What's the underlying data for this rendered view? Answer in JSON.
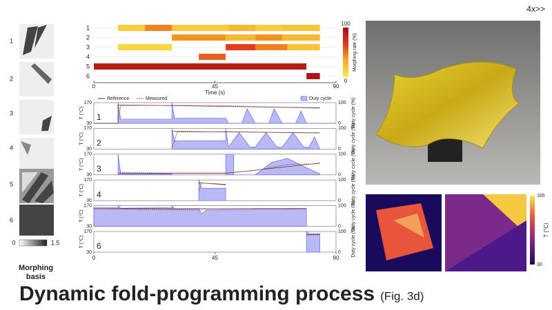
{
  "speed": "4x>>",
  "title": "Dynamic fold-programming process",
  "subtitle": "(Fig. 3d)",
  "basis": {
    "labels": [
      "1",
      "2",
      "3",
      "4",
      "5",
      "6"
    ],
    "colorbar": {
      "min": 0,
      "max": 1.5
    },
    "caption": "Morphing basis"
  },
  "timeline": {
    "xlabel": "Time (s)",
    "xlim": [
      0,
      90
    ],
    "xticks": [
      0,
      45,
      90
    ],
    "rows": [
      {
        "label": "1",
        "segments": [
          [
            9,
            19,
            15
          ],
          [
            19,
            29,
            45
          ],
          [
            29,
            50,
            15
          ],
          [
            50,
            60,
            25
          ],
          [
            60,
            70,
            15
          ],
          [
            70,
            84,
            20
          ]
        ]
      },
      {
        "label": "2",
        "segments": [
          [
            29,
            49,
            40
          ],
          [
            49,
            60,
            25
          ],
          [
            60,
            70,
            40
          ],
          [
            70,
            84,
            25
          ]
        ]
      },
      {
        "label": "3",
        "segments": [
          [
            9,
            29,
            10
          ],
          [
            49,
            60,
            65
          ],
          [
            60,
            72,
            45
          ],
          [
            72,
            84,
            20
          ]
        ]
      },
      {
        "label": "4",
        "segments": [
          [
            39,
            49,
            55
          ]
        ]
      },
      {
        "label": "5",
        "segments": [
          [
            0,
            79,
            90
          ]
        ]
      },
      {
        "label": "6",
        "segments": [
          [
            79,
            84,
            95
          ]
        ]
      }
    ],
    "colorbar": {
      "label": "Morphing rate (%)",
      "lim": [
        0,
        100
      ],
      "ticks": [
        0,
        100
      ]
    }
  },
  "plots": {
    "legend": [
      "Reference",
      "Measured",
      "Duty cycle"
    ],
    "ylabel": "T (°C)",
    "y2label": "Duty cycle (%)",
    "ylim": [
      30,
      170
    ],
    "yticks": [
      30,
      170
    ],
    "y2lim": [
      0,
      100
    ],
    "y2ticks": [
      0,
      100
    ],
    "xlim": [
      0,
      90
    ],
    "xticks": [
      0,
      45,
      90
    ],
    "panels": [
      {
        "label": "1",
        "reference": [
          [
            0,
            30
          ],
          [
            9,
            30
          ],
          [
            9,
            155
          ],
          [
            84,
            135
          ]
        ],
        "measured": [
          [
            9,
            40
          ],
          [
            10,
            150
          ],
          [
            29,
            152
          ],
          [
            50,
            148
          ],
          [
            84,
            132
          ]
        ],
        "duty": [
          [
            0,
            0
          ],
          [
            9,
            0
          ],
          [
            9,
            100
          ],
          [
            10,
            20
          ],
          [
            29,
            20
          ],
          [
            29,
            100
          ],
          [
            30,
            25
          ],
          [
            49,
            25
          ],
          [
            50,
            0
          ],
          [
            55,
            0
          ],
          [
            57,
            70
          ],
          [
            60,
            0
          ],
          [
            65,
            0
          ],
          [
            67,
            70
          ],
          [
            70,
            0
          ],
          [
            75,
            0
          ],
          [
            77,
            60
          ],
          [
            79,
            0
          ],
          [
            90,
            0
          ]
        ]
      },
      {
        "label": "2",
        "reference": [
          [
            29,
            150
          ],
          [
            84,
            140
          ]
        ],
        "measured": [
          [
            29,
            35
          ],
          [
            31,
            145
          ],
          [
            49,
            148
          ],
          [
            84,
            138
          ]
        ],
        "duty": [
          [
            29,
            0
          ],
          [
            29,
            100
          ],
          [
            30,
            40
          ],
          [
            49,
            40
          ],
          [
            49,
            100
          ],
          [
            50,
            10
          ],
          [
            54,
            80
          ],
          [
            58,
            10
          ],
          [
            60,
            10
          ],
          [
            64,
            80
          ],
          [
            68,
            10
          ],
          [
            70,
            10
          ],
          [
            74,
            80
          ],
          [
            78,
            10
          ],
          [
            80,
            10
          ],
          [
            82,
            60
          ],
          [
            84,
            0
          ]
        ]
      },
      {
        "label": "3",
        "reference": [
          [
            9,
            40
          ],
          [
            29,
            40
          ],
          [
            49,
            40
          ],
          [
            84,
            110
          ]
        ],
        "measured": [
          [
            9,
            40
          ],
          [
            10,
            45
          ],
          [
            29,
            42
          ],
          [
            49,
            42
          ],
          [
            60,
            60
          ],
          [
            72,
            100
          ],
          [
            84,
            105
          ]
        ],
        "duty": [
          [
            9,
            0
          ],
          [
            9,
            100
          ],
          [
            10,
            5
          ],
          [
            29,
            5
          ],
          [
            29,
            0
          ],
          [
            49,
            0
          ],
          [
            49,
            100
          ],
          [
            52,
            100
          ],
          [
            52,
            0
          ],
          [
            60,
            0
          ],
          [
            66,
            60
          ],
          [
            72,
            80
          ],
          [
            78,
            40
          ],
          [
            84,
            5
          ],
          [
            84,
            0
          ]
        ]
      },
      {
        "label": "4",
        "reference": [
          [
            39,
            150
          ],
          [
            49,
            140
          ]
        ],
        "measured": [
          [
            39,
            90
          ],
          [
            40,
            150
          ],
          [
            49,
            135
          ]
        ],
        "duty": [
          [
            39,
            0
          ],
          [
            39,
            100
          ],
          [
            40,
            60
          ],
          [
            49,
            60
          ],
          [
            49,
            0
          ]
        ]
      },
      {
        "label": "5",
        "reference": [
          [
            0,
            150
          ],
          [
            79,
            150
          ]
        ],
        "measured": [
          [
            0,
            150
          ],
          [
            40,
            140
          ],
          [
            42,
            150
          ],
          [
            79,
            152
          ]
        ],
        "duty": [
          [
            0,
            0
          ],
          [
            0,
            90
          ],
          [
            9,
            90
          ],
          [
            9,
            100
          ],
          [
            10,
            88
          ],
          [
            29,
            90
          ],
          [
            29,
            100
          ],
          [
            30,
            85
          ],
          [
            39,
            85
          ],
          [
            40,
            60
          ],
          [
            42,
            80
          ],
          [
            79,
            85
          ],
          [
            79,
            0
          ]
        ]
      },
      {
        "label": "6",
        "reference": [
          [
            79,
            150
          ],
          [
            84,
            150
          ]
        ],
        "measured": [
          [
            79,
            145
          ],
          [
            84,
            148
          ]
        ],
        "duty": [
          [
            79,
            0
          ],
          [
            79,
            100
          ],
          [
            80,
            90
          ],
          [
            84,
            90
          ],
          [
            84,
            0
          ]
        ]
      }
    ]
  },
  "thermal": {
    "colorbar": {
      "label": "T (°C)",
      "ticks": [
        30,
        165
      ]
    }
  }
}
